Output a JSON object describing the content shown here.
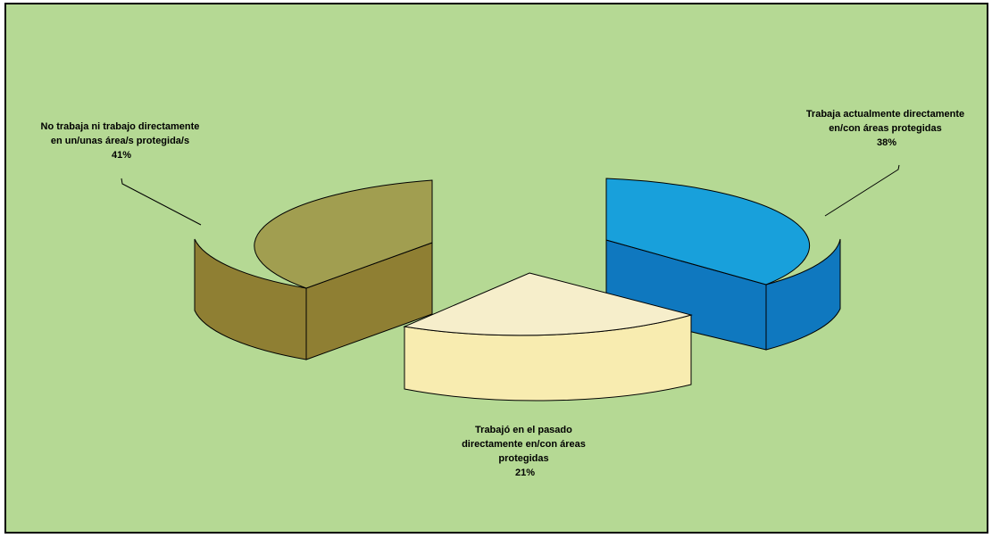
{
  "chart_data": {
    "type": "pie",
    "style": "3d-exploded",
    "background_color": "#b5d994",
    "slices": [
      {
        "label_lines": [
          "Trabaja actualmente directamente",
          "en/con áreas protegidas",
          "38%"
        ],
        "value": 38,
        "top_color": "#18a0db",
        "side_color": "#0f78bf"
      },
      {
        "label_lines": [
          "Trabajó en el pasado",
          "directamente en/con áreas",
          "protegidas",
          "21%"
        ],
        "value": 21,
        "top_color": "#f6eecb",
        "side_color": "#f8ecb0"
      },
      {
        "label_lines": [
          "No trabaja ni trabajo directamente",
          "en un/unas  área/s protegida/s",
          "41%"
        ],
        "value": 41,
        "top_color": "#a19e50",
        "side_color": "#8f7f33"
      }
    ],
    "title": "",
    "legend": "none"
  }
}
